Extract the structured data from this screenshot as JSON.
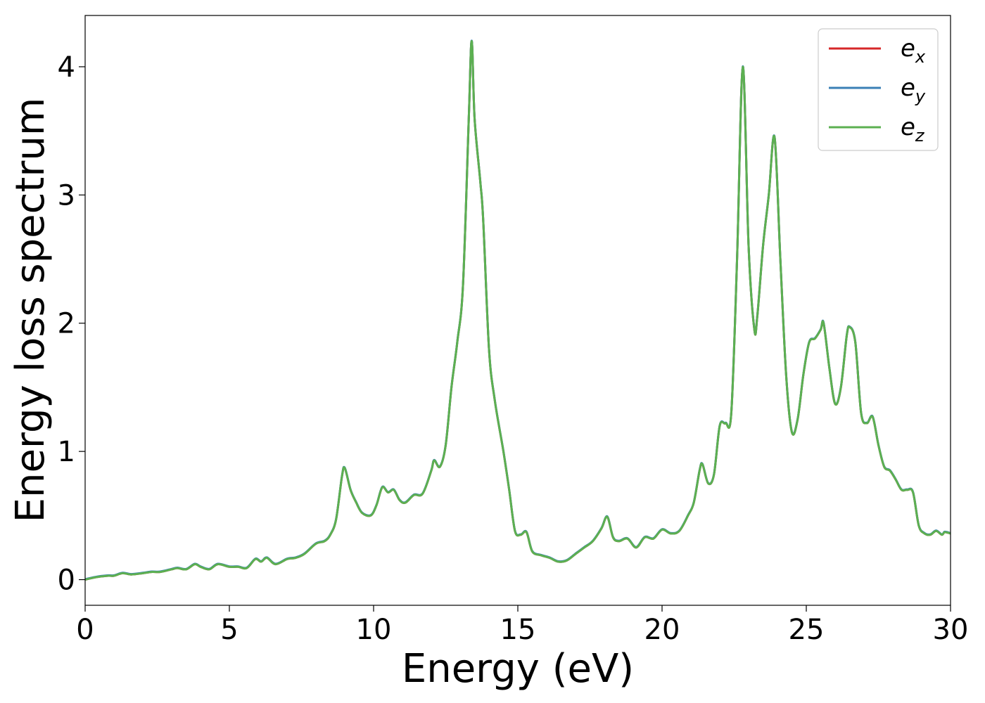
{
  "chart_data": {
    "type": "line",
    "xlabel": "Energy (eV)",
    "ylabel": "Energy loss spectrum",
    "xlim": [
      0,
      30
    ],
    "ylim": [
      -0.2,
      4.4
    ],
    "xticks": [
      0,
      5,
      10,
      15,
      20,
      25,
      30
    ],
    "yticks": [
      0,
      1,
      2,
      3,
      4
    ],
    "grid": false,
    "legend_position": "top-right",
    "series": [
      {
        "name": "e_x",
        "label_base": "e",
        "label_sub": "x",
        "color": "#d62728"
      },
      {
        "name": "e_y",
        "label_base": "e",
        "label_sub": "y",
        "color": "#3a7fb6"
      },
      {
        "name": "e_z",
        "label_base": "e",
        "label_sub": "z",
        "color": "#5cb051"
      }
    ],
    "x": [
      0,
      0.4,
      0.8,
      1.0,
      1.3,
      1.6,
      2.0,
      2.3,
      2.6,
      3.0,
      3.2,
      3.5,
      3.8,
      4.0,
      4.3,
      4.6,
      5.0,
      5.3,
      5.6,
      5.9,
      6.1,
      6.3,
      6.6,
      7.0,
      7.3,
      7.6,
      8.0,
      8.3,
      8.5,
      8.7,
      8.9,
      9.0,
      9.2,
      9.4,
      9.6,
      9.9,
      10.1,
      10.3,
      10.5,
      10.7,
      10.9,
      11.1,
      11.4,
      11.7,
      12.0,
      12.1,
      12.3,
      12.5,
      12.7,
      12.9,
      13.1,
      13.3,
      13.4,
      13.5,
      13.7,
      13.8,
      14.0,
      14.2,
      14.5,
      14.7,
      14.9,
      15.1,
      15.3,
      15.5,
      15.8,
      16.1,
      16.4,
      16.7,
      17.0,
      17.3,
      17.6,
      17.9,
      18.1,
      18.3,
      18.5,
      18.8,
      19.1,
      19.4,
      19.7,
      20.0,
      20.3,
      20.6,
      20.9,
      21.1,
      21.3,
      21.4,
      21.6,
      21.8,
      22.0,
      22.2,
      22.4,
      22.6,
      22.8,
      23.0,
      23.2,
      23.3,
      23.5,
      23.7,
      23.9,
      24.1,
      24.3,
      24.5,
      24.7,
      24.9,
      25.1,
      25.3,
      25.5,
      25.6,
      25.8,
      26.0,
      26.2,
      26.4,
      26.5,
      26.7,
      26.9,
      27.1,
      27.3,
      27.5,
      27.7,
      27.9,
      28.1,
      28.3,
      28.5,
      28.7,
      28.9,
      29.1,
      29.3,
      29.5,
      29.7,
      29.8,
      30.0
    ],
    "y": [
      0.0,
      0.02,
      0.03,
      0.03,
      0.05,
      0.04,
      0.05,
      0.06,
      0.06,
      0.08,
      0.09,
      0.08,
      0.12,
      0.1,
      0.08,
      0.12,
      0.1,
      0.1,
      0.09,
      0.16,
      0.14,
      0.17,
      0.12,
      0.16,
      0.17,
      0.2,
      0.28,
      0.3,
      0.35,
      0.47,
      0.8,
      0.87,
      0.7,
      0.6,
      0.52,
      0.5,
      0.58,
      0.72,
      0.68,
      0.7,
      0.62,
      0.6,
      0.66,
      0.67,
      0.85,
      0.93,
      0.88,
      1.05,
      1.5,
      1.85,
      2.3,
      3.6,
      4.2,
      3.6,
      3.1,
      2.8,
      1.8,
      1.4,
      1.0,
      0.7,
      0.38,
      0.35,
      0.37,
      0.22,
      0.19,
      0.17,
      0.14,
      0.15,
      0.2,
      0.25,
      0.3,
      0.4,
      0.49,
      0.33,
      0.3,
      0.32,
      0.25,
      0.33,
      0.32,
      0.39,
      0.36,
      0.38,
      0.5,
      0.6,
      0.85,
      0.9,
      0.75,
      0.82,
      1.2,
      1.22,
      1.3,
      2.5,
      4.0,
      2.6,
      1.95,
      2.05,
      2.6,
      3.0,
      3.45,
      2.5,
      1.6,
      1.15,
      1.25,
      1.6,
      1.85,
      1.88,
      1.95,
      2.0,
      1.65,
      1.37,
      1.5,
      1.9,
      1.97,
      1.85,
      1.3,
      1.22,
      1.27,
      1.05,
      0.88,
      0.85,
      0.78,
      0.7,
      0.7,
      0.68,
      0.42,
      0.36,
      0.35,
      0.38,
      0.35,
      0.37,
      0.36
    ]
  }
}
